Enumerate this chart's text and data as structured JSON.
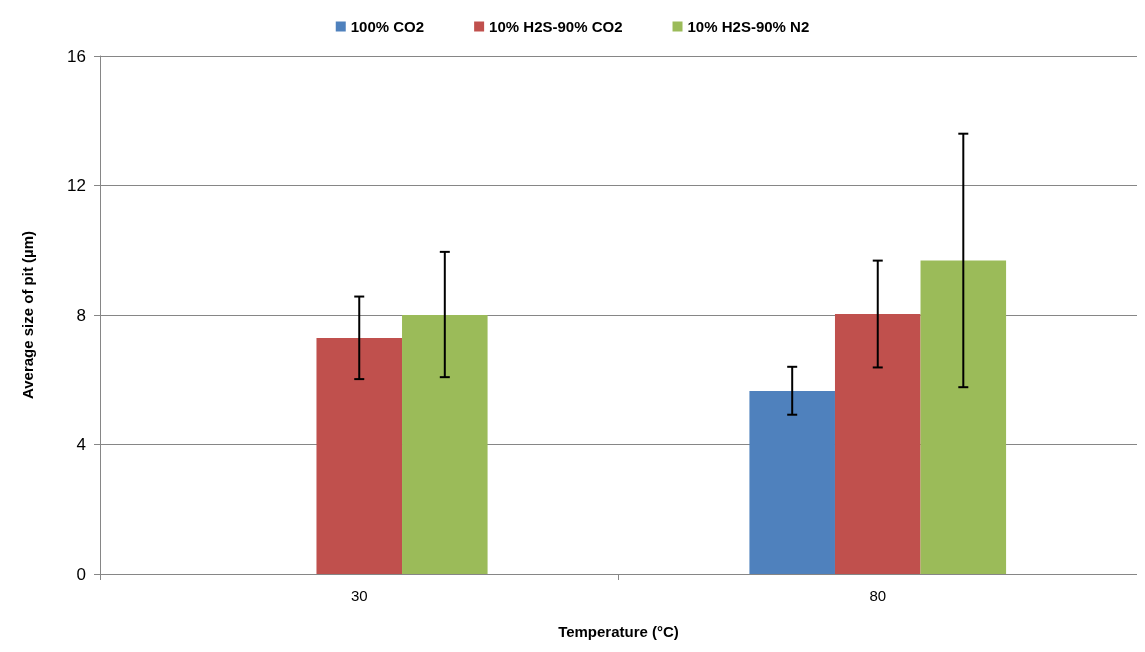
{
  "chart_data": {
    "type": "bar",
    "categories": [
      "30",
      "80"
    ],
    "xlabel": "Temperature (°C)",
    "ylabel": "Average size of pit (µm)",
    "series": [
      {
        "name": "100% CO2",
        "color": "#4f81bd",
        "values": [
          0,
          5.65
        ],
        "errors": [
          null,
          [
            4.92,
            6.4
          ]
        ]
      },
      {
        "name": "10% H2S-90% CO2",
        "color": "#c0504d",
        "values": [
          7.29,
          8.03
        ],
        "errors": [
          [
            6.02,
            8.57
          ],
          [
            6.38,
            9.68
          ]
        ]
      },
      {
        "name": "10% H2S-90% N2",
        "color": "#9bbb59",
        "values": [
          8.0,
          9.68
        ],
        "errors": [
          [
            6.08,
            9.95
          ],
          [
            5.77,
            13.6
          ]
        ]
      }
    ],
    "ylim": [
      0,
      16
    ],
    "yticks": [
      0,
      4,
      8,
      12,
      16
    ],
    "grid": "y",
    "legend": "top"
  }
}
